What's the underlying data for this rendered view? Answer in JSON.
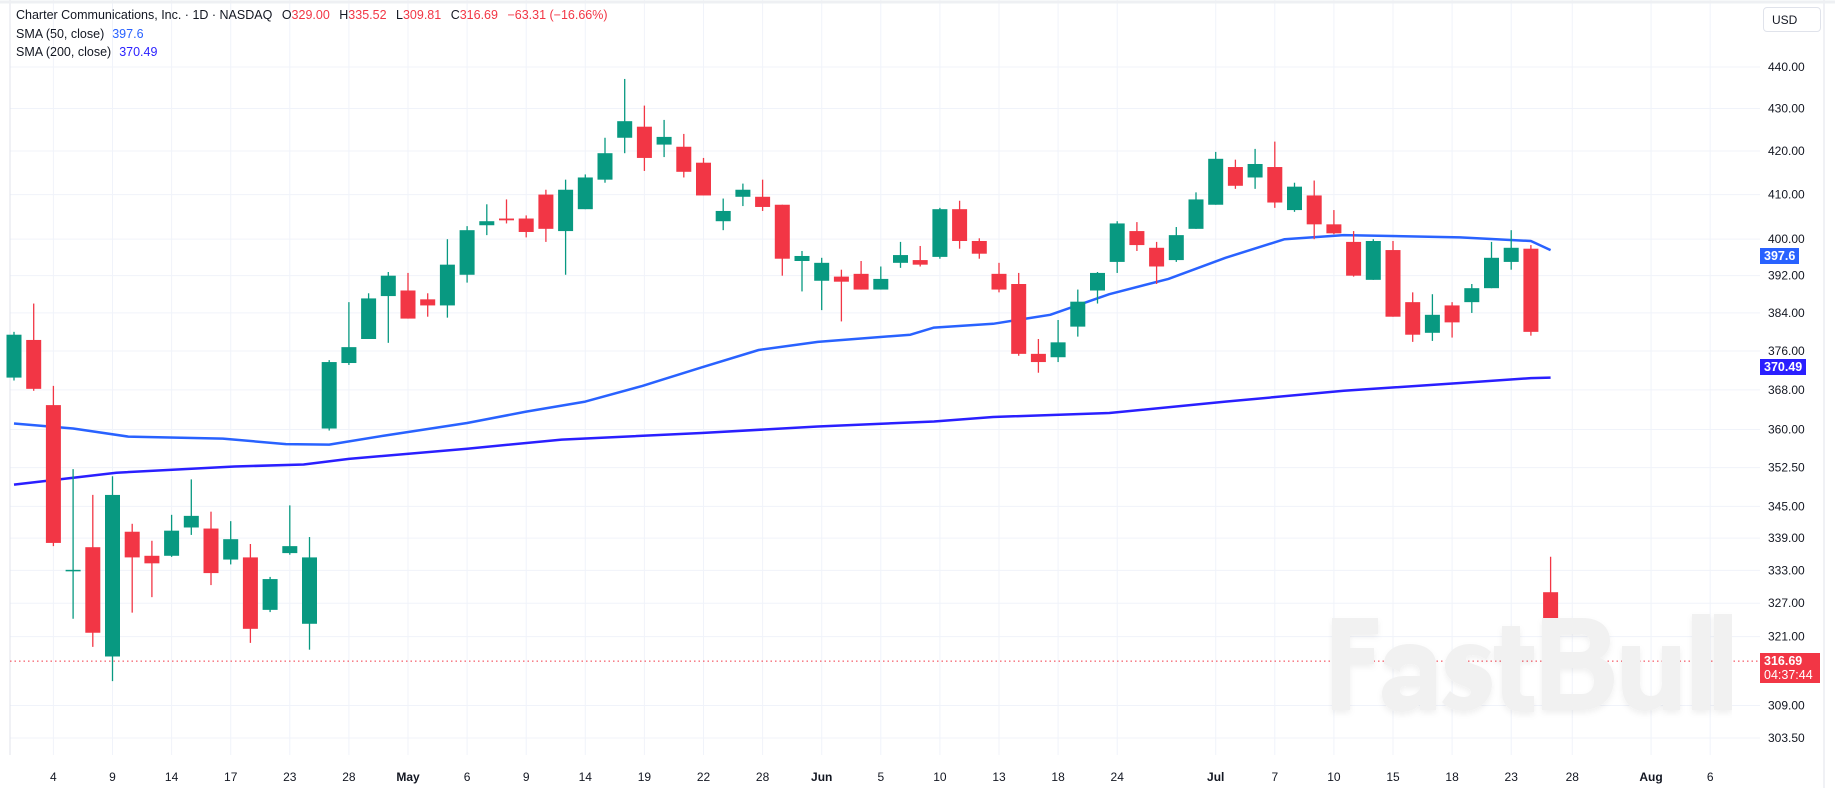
{
  "legend": {
    "title": "Charter Communications, Inc. · 1D · NASDAQ",
    "o_label": "O",
    "o_value": "329.00",
    "h_label": "H",
    "h_value": "335.52",
    "l_label": "L",
    "l_value": "309.81",
    "c_label": "C",
    "c_value": "316.69",
    "change": "−63.31 (−16.66%)",
    "sma50_label": "SMA (50, close)",
    "sma50_value": "397.6",
    "sma200_label": "SMA (200, close)",
    "sma200_value": "370.49"
  },
  "currency": "USD",
  "price_labels": {
    "sma50": "397.6",
    "sma200": "370.49",
    "last_price": "316.69",
    "countdown": "04:37:44"
  },
  "watermark": "FastBull",
  "colors": {
    "up": "#089981",
    "down": "#f23645",
    "sma50": "#2962ff",
    "sma200": "#2a1fff",
    "grid": "#f0f3fa"
  },
  "chart_data": {
    "type": "candlestick",
    "title": "Charter Communications, Inc. · 1D · NASDAQ",
    "y_scale": "log",
    "ylim": [
      300,
      447
    ],
    "xlim": [
      -0.7,
      88.6
    ],
    "grid": true,
    "y_ticks": [
      "440.00",
      "430.00",
      "420.00",
      "410.00",
      "400.00",
      "392.00",
      "384.00",
      "376.00",
      "368.00",
      "360.00",
      "352.50",
      "345.00",
      "339.00",
      "333.00",
      "327.00",
      "321.00",
      "309.00",
      "303.50"
    ],
    "x_ticks": [
      {
        "label": "4",
        "index": 2
      },
      {
        "label": "9",
        "index": 5
      },
      {
        "label": "14",
        "index": 8
      },
      {
        "label": "17",
        "index": 11
      },
      {
        "label": "23",
        "index": 14
      },
      {
        "label": "28",
        "index": 17
      },
      {
        "label": "May",
        "index": 20,
        "bold": true
      },
      {
        "label": "6",
        "index": 23
      },
      {
        "label": "9",
        "index": 26
      },
      {
        "label": "14",
        "index": 29
      },
      {
        "label": "19",
        "index": 32
      },
      {
        "label": "22",
        "index": 35
      },
      {
        "label": "28",
        "index": 38
      },
      {
        "label": "Jun",
        "index": 41,
        "bold": true
      },
      {
        "label": "5",
        "index": 44
      },
      {
        "label": "10",
        "index": 47
      },
      {
        "label": "13",
        "index": 50
      },
      {
        "label": "18",
        "index": 53
      },
      {
        "label": "24",
        "index": 56
      },
      {
        "label": "Jul",
        "index": 61,
        "bold": true
      },
      {
        "label": "7",
        "index": 64
      },
      {
        "label": "10",
        "index": 67
      },
      {
        "label": "15",
        "index": 70
      },
      {
        "label": "18",
        "index": 73
      },
      {
        "label": "23",
        "index": 76
      },
      {
        "label": "28",
        "index": 79.1
      },
      {
        "label": "Aug",
        "index": 83.1,
        "bold": true
      },
      {
        "label": "6",
        "index": 86.1
      }
    ],
    "candles_ohlc": [
      [
        370.5,
        380,
        369.9,
        379.4
      ],
      [
        378.3,
        386,
        367.8,
        368.2
      ],
      [
        364.9,
        368.8,
        337.5,
        338.1
      ],
      [
        333,
        352.2,
        324.2,
        333.1
      ],
      [
        337.3,
        347.2,
        319.2,
        321.7
      ],
      [
        317.5,
        350.8,
        313.2,
        347.2
      ],
      [
        340.2,
        341.7,
        325.3,
        335.4
      ],
      [
        335.7,
        338.5,
        328.1,
        334.3
      ],
      [
        335.7,
        343.4,
        335.5,
        340.4
      ],
      [
        341,
        350.2,
        339.6,
        343.2
      ],
      [
        340.8,
        344,
        330.3,
        332.5
      ],
      [
        335,
        342.2,
        334.1,
        338.8
      ],
      [
        335.4,
        337.9,
        319.9,
        322.4
      ],
      [
        325.8,
        331.8,
        325.4,
        331.4
      ],
      [
        336.2,
        345.2,
        335.9,
        337.5
      ],
      [
        323.3,
        339.2,
        318.7,
        335.4
      ],
      [
        360.2,
        374.1,
        359.8,
        373.7
      ],
      [
        373.5,
        386.3,
        373.1,
        376.8
      ],
      [
        378.5,
        388.2,
        378.5,
        387.1
      ],
      [
        387.6,
        392.8,
        377.7,
        392
      ],
      [
        388.8,
        392.6,
        382.8,
        382.8
      ],
      [
        386.9,
        388.2,
        383.2,
        385.6
      ],
      [
        385.6,
        400,
        383,
        394.4
      ],
      [
        392.2,
        402.9,
        390.5,
        402
      ],
      [
        403.1,
        407.8,
        400.9,
        404
      ],
      [
        404.6,
        408.9,
        403.5,
        404.2
      ],
      [
        404.6,
        405.3,
        400.4,
        401.6
      ],
      [
        410,
        411.1,
        399.4,
        402.3
      ],
      [
        401.8,
        413.4,
        392.2,
        411.1
      ],
      [
        406.7,
        414.6,
        406.7,
        413.9
      ],
      [
        413.4,
        423.1,
        412.7,
        419.5
      ],
      [
        423.1,
        437.1,
        419.5,
        427
      ],
      [
        425.7,
        430.7,
        415.4,
        418.4
      ],
      [
        421.5,
        427.3,
        418.6,
        423.3
      ],
      [
        421,
        424,
        413.9,
        415.2
      ],
      [
        417.3,
        418.4,
        409.8,
        409.8
      ],
      [
        404,
        409.1,
        402,
        406.3
      ],
      [
        409.5,
        412.5,
        407.4,
        411.1
      ],
      [
        409.5,
        413.4,
        406.3,
        407.2
      ],
      [
        407.7,
        407.7,
        392,
        395.7
      ],
      [
        395.2,
        397.4,
        388.6,
        396.3
      ],
      [
        390.9,
        395.9,
        384.6,
        394.8
      ],
      [
        391.8,
        393.3,
        382.2,
        390.7
      ],
      [
        392.4,
        395.2,
        389,
        389
      ],
      [
        389,
        394,
        389,
        391.3
      ],
      [
        394.8,
        399.4,
        393.7,
        396.5
      ],
      [
        395.4,
        398.5,
        394,
        394.4
      ],
      [
        396.1,
        407,
        395.7,
        406.7
      ],
      [
        406.7,
        408.6,
        397.9,
        399.6
      ],
      [
        399.6,
        400.2,
        395.7,
        396.8
      ],
      [
        392.4,
        394.8,
        388.4,
        389
      ],
      [
        390.2,
        392.6,
        375,
        375.4
      ],
      [
        375.4,
        378.5,
        371.5,
        373.7
      ],
      [
        374.7,
        382.5,
        373.7,
        377.8
      ],
      [
        381.1,
        389,
        379,
        386.4
      ],
      [
        388.8,
        392.8,
        386,
        392.6
      ],
      [
        395,
        404,
        392.6,
        403.5
      ],
      [
        401.8,
        403.8,
        397.4,
        398.7
      ],
      [
        398.1,
        399.4,
        390.2,
        394
      ],
      [
        395.4,
        402.7,
        395,
        400.9
      ],
      [
        402.3,
        410.5,
        402.3,
        408.9
      ],
      [
        407.7,
        419.8,
        407.7,
        418.2
      ],
      [
        416.3,
        418,
        411.3,
        412
      ],
      [
        413.9,
        420.5,
        411.3,
        417
      ],
      [
        416.3,
        422.2,
        407,
        408.2
      ],
      [
        406.5,
        412.7,
        406.1,
        411.8
      ],
      [
        409.8,
        413.2,
        400,
        403.3
      ],
      [
        403.3,
        406.5,
        401.1,
        401.3
      ],
      [
        399.4,
        401.8,
        391.8,
        392
      ],
      [
        391.1,
        400,
        391.1,
        399.6
      ],
      [
        397.6,
        399.6,
        383.2,
        383.2
      ],
      [
        386.3,
        388.4,
        377.9,
        379.4
      ],
      [
        379.8,
        388,
        378.1,
        383.6
      ],
      [
        385.6,
        386.3,
        378.8,
        382
      ],
      [
        386.3,
        390.2,
        384,
        389.3
      ],
      [
        389.3,
        399.4,
        389.3,
        395.9
      ],
      [
        395,
        402,
        393.3,
        398.1
      ],
      [
        397.9,
        398.7,
        379.2,
        380.0
      ],
      [
        329,
        335.52,
        309.81,
        316.69
      ]
    ],
    "series": [
      {
        "name": "SMA (50, close)",
        "points": [
          [
            0,
            361.2
          ],
          [
            3,
            360.2
          ],
          [
            5.8,
            358.6
          ],
          [
            10.6,
            358.2
          ],
          [
            13.8,
            357.1
          ],
          [
            16,
            357
          ],
          [
            18.8,
            358.8
          ],
          [
            23,
            361.3
          ],
          [
            26,
            363.6
          ],
          [
            29,
            365.6
          ],
          [
            31.9,
            368.8
          ],
          [
            34.9,
            372.6
          ],
          [
            37.8,
            376.2
          ],
          [
            40.8,
            377.9
          ],
          [
            45.5,
            379.4
          ],
          [
            46.7,
            380.9
          ],
          [
            49.7,
            381.7
          ],
          [
            52.6,
            383.6
          ],
          [
            55.6,
            388
          ],
          [
            58.6,
            391.3
          ],
          [
            61.5,
            395.9
          ],
          [
            64.5,
            400
          ],
          [
            67.5,
            400.9
          ],
          [
            73.4,
            400.4
          ],
          [
            77,
            399.6
          ],
          [
            78,
            397.6
          ]
        ]
      },
      {
        "name": "SMA (200, close)",
        "points": [
          [
            0,
            349.2
          ],
          [
            5.2,
            351.5
          ],
          [
            11.2,
            352.7
          ],
          [
            14.7,
            353.1
          ],
          [
            17,
            354.2
          ],
          [
            23,
            356.2
          ],
          [
            27.8,
            358
          ],
          [
            34.9,
            359.3
          ],
          [
            40.8,
            360.6
          ],
          [
            46.7,
            361.6
          ],
          [
            49.7,
            362.5
          ],
          [
            55.6,
            363.3
          ],
          [
            61.5,
            365.6
          ],
          [
            67.5,
            367.8
          ],
          [
            73.4,
            369.4
          ],
          [
            77,
            370.4
          ],
          [
            78,
            370.49
          ]
        ]
      }
    ],
    "last_price": 316.69
  }
}
